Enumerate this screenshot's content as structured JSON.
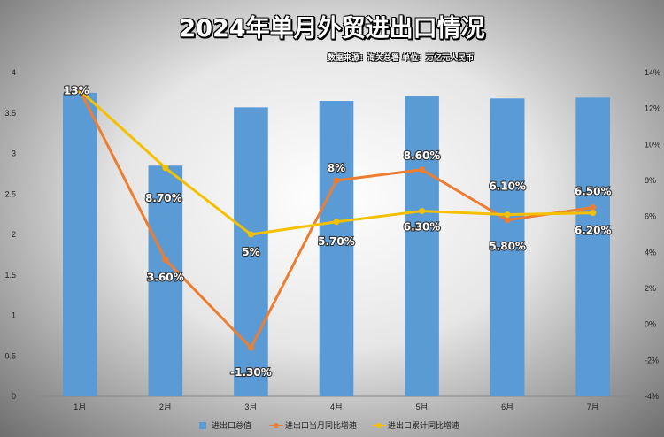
{
  "chart_data": {
    "type": "bar",
    "title": "2024年单月外贸进出口情况",
    "subtitle": "数据来源：海关总署 单位：万亿元人民币",
    "categories": [
      "1月",
      "2月",
      "3月",
      "4月",
      "5月",
      "6月",
      "7月"
    ],
    "y_left_ticks": [
      "0",
      "0.5",
      "1",
      "1.5",
      "2",
      "2.5",
      "3",
      "3.5",
      "4"
    ],
    "y_right_ticks": [
      "-4%",
      "-2%",
      "0%",
      "2%",
      "4%",
      "6%",
      "8%",
      "10%",
      "12%",
      "14%"
    ],
    "ylim_left": [
      0,
      4
    ],
    "ylim_right": [
      -4,
      14
    ],
    "series": [
      {
        "name": "进出口总值",
        "type": "bar",
        "axis": "left",
        "color": "#5b9bd5",
        "values": [
          3.75,
          2.85,
          3.57,
          3.65,
          3.71,
          3.68,
          3.69
        ]
      },
      {
        "name": "进出口当月同比增速",
        "type": "line",
        "axis": "right",
        "color": "#ed7d31",
        "values": [
          13,
          3.6,
          -1.3,
          8,
          8.6,
          5.8,
          6.5
        ],
        "labels": [
          "13%",
          "3.60%",
          "-1.30%",
          "8%",
          "8.60%",
          "5.80%",
          "6.50%"
        ]
      },
      {
        "name": "进出口累计同比增速",
        "type": "line",
        "axis": "right",
        "color": "#f4c000",
        "values": [
          13,
          8.7,
          5,
          5.7,
          6.3,
          6.1,
          6.2
        ],
        "labels": [
          "",
          "8.70%",
          "5%",
          "5.70%",
          "6.30%",
          "6.10%",
          "6.20%"
        ]
      }
    ],
    "legend_position": "bottom",
    "grid": false
  }
}
